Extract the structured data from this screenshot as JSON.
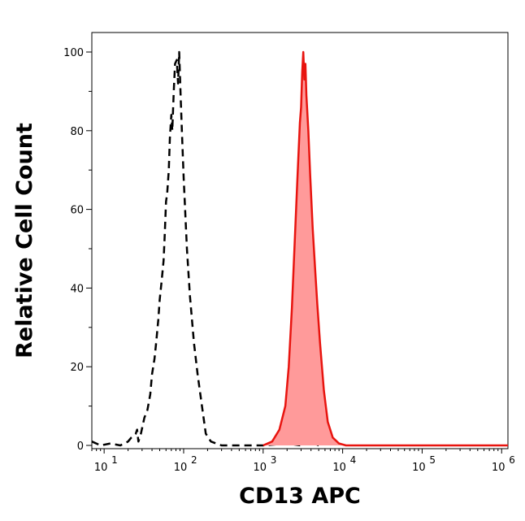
{
  "chart_data": {
    "type": "area",
    "xlabel": "CD13 APC",
    "ylabel": "Relative Cell Count",
    "x_scale": "log",
    "xlim": [
      7,
      1200000
    ],
    "ylim": [
      0,
      105
    ],
    "x_ticks": [
      {
        "value": 10,
        "base": "10",
        "exp": "1"
      },
      {
        "value": 100,
        "base": "10",
        "exp": "2"
      },
      {
        "value": 1000,
        "base": "10",
        "exp": "3"
      },
      {
        "value": 10000,
        "base": "10",
        "exp": "4"
      },
      {
        "value": 100000,
        "base": "10",
        "exp": "5"
      },
      {
        "value": 1000000,
        "base": "10",
        "exp": "6"
      }
    ],
    "y_ticks": [
      0,
      20,
      40,
      60,
      80,
      100
    ],
    "colors": {
      "stained_line": "#e8140f",
      "stained_fill": "#ff9a9a",
      "control_line": "#000000"
    },
    "series": [
      {
        "style": "dashed-black",
        "x": [
          7,
          9,
          12,
          16,
          20,
          22,
          25,
          26,
          27,
          29,
          32,
          35,
          38,
          40,
          43,
          45,
          48,
          50,
          53,
          56,
          58,
          60,
          62,
          65,
          67,
          70,
          72,
          75,
          78,
          82,
          85,
          88,
          92,
          95,
          100,
          105,
          110,
          120,
          135,
          150,
          170,
          190,
          220,
          300,
          1000,
          2000,
          3000,
          4000,
          5000
        ],
        "y": [
          1,
          0,
          0.5,
          0,
          1,
          2,
          3,
          4,
          1,
          3,
          7,
          9,
          13,
          18,
          22,
          26,
          32,
          37,
          42,
          47,
          54,
          62,
          64,
          70,
          78,
          84,
          80,
          90,
          97,
          98,
          92,
          100,
          88,
          80,
          68,
          59,
          50,
          38,
          26,
          18,
          10,
          3,
          1,
          0,
          0,
          0.5,
          0,
          1,
          0
        ],
        "fill": false
      },
      {
        "style": "solid-red-filled",
        "x": [
          1000,
          1300,
          1600,
          1900,
          2100,
          2300,
          2500,
          2700,
          2900,
          3000,
          3100,
          3200,
          3300,
          3400,
          3500,
          3700,
          3900,
          4200,
          4500,
          4800,
          5200,
          5800,
          6500,
          7500,
          9000,
          11000,
          20000,
          100000,
          300000,
          1000000,
          1200000
        ],
        "y": [
          0,
          1,
          4,
          10,
          20,
          35,
          52,
          68,
          82,
          86,
          95,
          100,
          93,
          97,
          89,
          80,
          69,
          55,
          45,
          36,
          26,
          14,
          6,
          2,
          0.5,
          0,
          0,
          0,
          0,
          0,
          0
        ],
        "fill": true
      }
    ]
  }
}
